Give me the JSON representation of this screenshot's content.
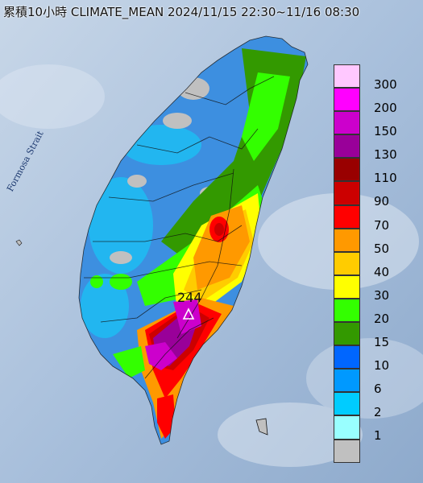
{
  "title": "累積10小時 CLIMATE_MEAN 2024/11/15 22:30~11/16 08:30",
  "strait_label": "Formosa Strait",
  "peak": {
    "value": "244",
    "symbol": "triangle-marker-icon"
  },
  "legend": {
    "items": [
      {
        "label": "300",
        "color": "#ffc8ff"
      },
      {
        "label": "200",
        "color": "#ff00ff"
      },
      {
        "label": "150",
        "color": "#cc00cc"
      },
      {
        "label": "130",
        "color": "#990099"
      },
      {
        "label": "110",
        "color": "#990000"
      },
      {
        "label": "90",
        "color": "#cc0000"
      },
      {
        "label": "70",
        "color": "#ff0000"
      },
      {
        "label": "50",
        "color": "#ff9900"
      },
      {
        "label": "40",
        "color": "#ffcc00"
      },
      {
        "label": "30",
        "color": "#ffff00"
      },
      {
        "label": "20",
        "color": "#33ff00"
      },
      {
        "label": "15",
        "color": "#339900"
      },
      {
        "label": "10",
        "color": "#0066ff"
      },
      {
        "label": "6",
        "color": "#0099ff"
      },
      {
        "label": "2",
        "color": "#00ccff"
      },
      {
        "label": "1",
        "color": "#99ffff"
      },
      {
        "label": "",
        "color": "#c0c0c0"
      }
    ]
  },
  "colors": {
    "ocean": "#9fb8d6",
    "land_base": "#3d8fe0",
    "border": "#111111"
  }
}
